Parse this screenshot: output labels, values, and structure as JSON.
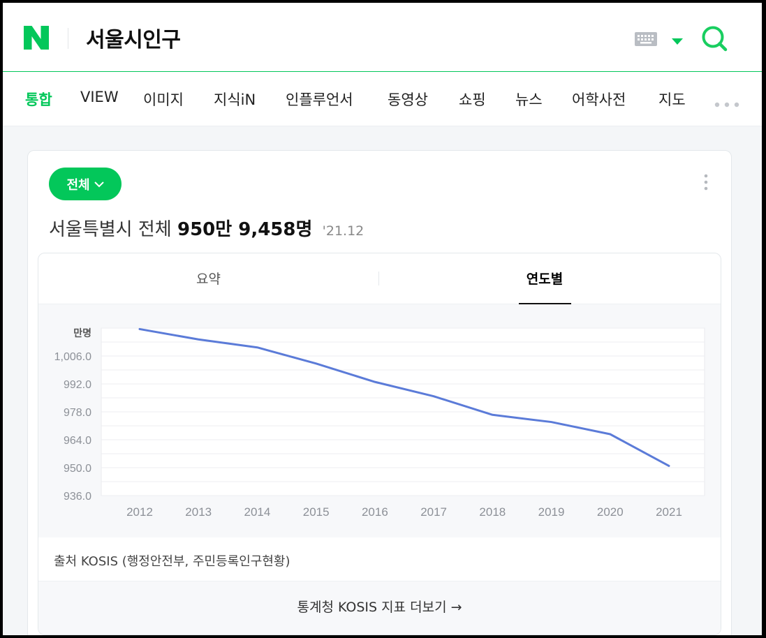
{
  "header": {
    "logo_letter": "N",
    "query": "서울시인구",
    "icons": [
      "keyboard-icon",
      "caret-down-icon",
      "search-icon"
    ],
    "brand_color": "#03c75a"
  },
  "tabs": [
    {
      "label": "통합",
      "active": true
    },
    {
      "label": "VIEW"
    },
    {
      "label": "이미지"
    },
    {
      "label": "지식iN"
    },
    {
      "label": "인플루언서"
    },
    {
      "label": "동영상"
    },
    {
      "label": "쇼핑"
    },
    {
      "label": "뉴스"
    },
    {
      "label": "어학사전"
    },
    {
      "label": "지도"
    }
  ],
  "card": {
    "filter_label": "전체",
    "summary_prefix": "서울특별시 전체",
    "summary_value": "950만 9,458명",
    "summary_date": "'21.12",
    "inner_tabs": [
      {
        "label": "요약"
      },
      {
        "label": "연도별",
        "active": true
      }
    ],
    "source_text": "출처 KOSIS (행정안전부, 주민등록인구현황)",
    "more_text": "통계청 KOSIS 지표 더보기 →"
  },
  "chart_data": {
    "type": "line",
    "ylabel": "만명",
    "ylim": [
      936,
      1020
    ],
    "yticks": [
      1006.0,
      992.0,
      978.0,
      964.0,
      950.0,
      936.0
    ],
    "ytick_labels": [
      "1,006.0",
      "992.0",
      "978.0",
      "964.0",
      "950.0",
      "936.0"
    ],
    "categories": [
      "2012",
      "2013",
      "2014",
      "2015",
      "2016",
      "2017",
      "2018",
      "2019",
      "2020",
      "2021"
    ],
    "series": [
      {
        "values": [
          1019.5,
          1014.3,
          1010.3,
          1002.2,
          993.0,
          985.8,
          976.5,
          972.9,
          966.8,
          950.9
        ],
        "color": "#5b7bd8"
      }
    ],
    "grid": true
  }
}
